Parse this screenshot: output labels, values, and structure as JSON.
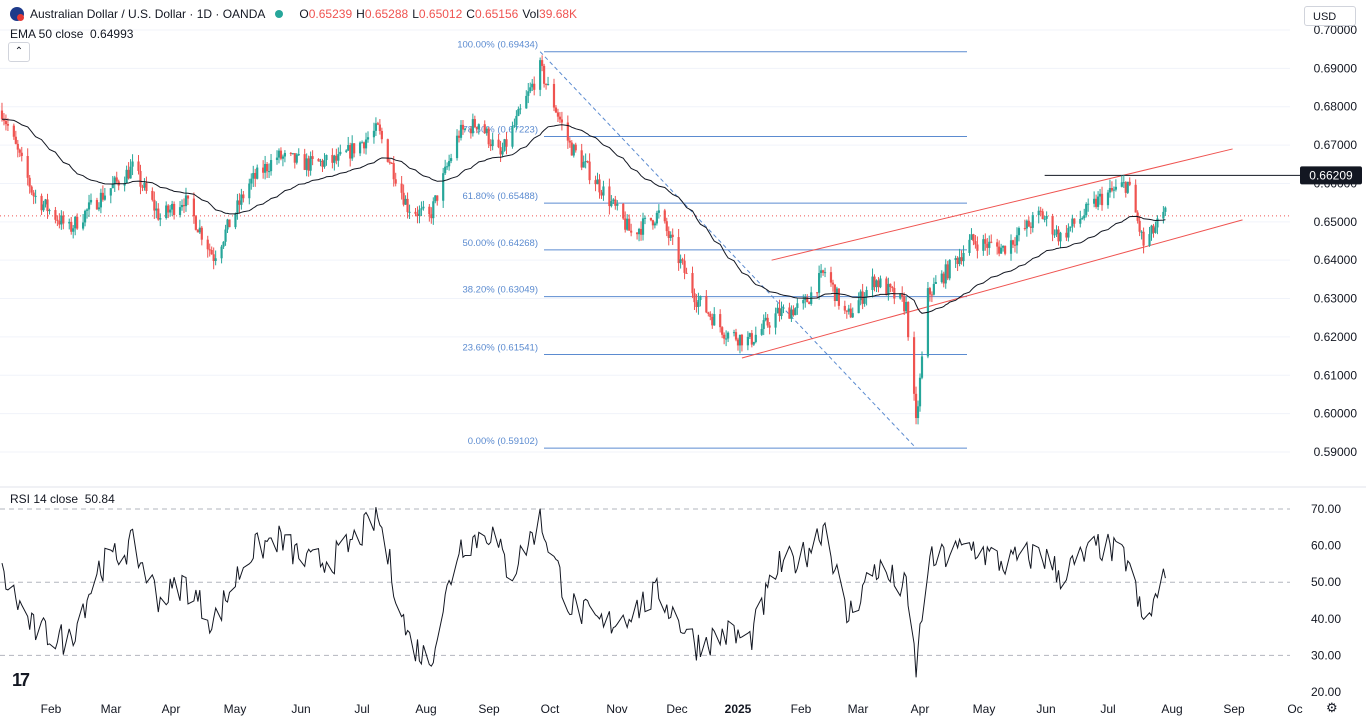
{
  "header": {
    "symbol": "Australian Dollar / U.S. Dollar · 1D · OANDA",
    "open_label": "O",
    "open": "0.65239",
    "high_label": "H",
    "high": "0.65288",
    "low_label": "L",
    "low": "0.65012",
    "close_label": "C",
    "close": "0.65156",
    "vol_label": "Vol",
    "vol": "39.68K",
    "ema_label": "EMA 50 close",
    "ema_value": "0.64993",
    "currency": "USD"
  },
  "rsi_header": {
    "label": "RSI 14 close",
    "value": "50.84"
  },
  "colors": {
    "up": "#26a69a",
    "down": "#ef5350",
    "fib": "#5b8bd0",
    "channel": "#ef5350",
    "ema": "#131722",
    "rsi": "#131722",
    "current_price_line": "#ef5350"
  },
  "chart_data": [
    {
      "type": "candlestick",
      "ylim": [
        0.585,
        0.7
      ],
      "yticks": [
        "0.70000",
        "0.69000",
        "0.68000",
        "0.67000",
        "0.66000",
        "0.65000",
        "0.64000",
        "0.63000",
        "0.62000",
        "0.61000",
        "0.60000",
        "0.59000"
      ],
      "x": [
        "Feb",
        "Mar",
        "Apr",
        "May",
        "Jun",
        "Jul",
        "Aug",
        "Sep",
        "Oct",
        "Nov",
        "Dec",
        "2025",
        "Feb",
        "Mar",
        "Apr",
        "May",
        "Jun",
        "Jul",
        "Aug",
        "Sep",
        "Oc"
      ],
      "price_path": [
        [
          "2024-01-02",
          0.679
        ],
        [
          "2024-01-18",
          0.657
        ],
        [
          "2024-02-05",
          0.648
        ],
        [
          "2024-02-20",
          0.656
        ],
        [
          "2024-03-08",
          0.664
        ],
        [
          "2024-03-22",
          0.651
        ],
        [
          "2024-04-03",
          0.656
        ],
        [
          "2024-04-18",
          0.641
        ],
        [
          "2024-05-06",
          0.66
        ],
        [
          "2024-05-20",
          0.667
        ],
        [
          "2024-06-05",
          0.665
        ],
        [
          "2024-06-20",
          0.666
        ],
        [
          "2024-07-10",
          0.674
        ],
        [
          "2024-07-25",
          0.654
        ],
        [
          "2024-08-05",
          0.651
        ],
        [
          "2024-08-20",
          0.673
        ],
        [
          "2024-08-30",
          0.676
        ],
        [
          "2024-09-10",
          0.667
        ],
        [
          "2024-09-30",
          0.69
        ],
        [
          "2024-10-15",
          0.67
        ],
        [
          "2024-11-01",
          0.658
        ],
        [
          "2024-11-15",
          0.647
        ],
        [
          "2024-11-29",
          0.652
        ],
        [
          "2024-12-18",
          0.63
        ],
        [
          "2025-01-02",
          0.621
        ],
        [
          "2025-01-14",
          0.619
        ],
        [
          "2025-01-28",
          0.626
        ],
        [
          "2025-02-10",
          0.628
        ],
        [
          "2025-02-21",
          0.637
        ],
        [
          "2025-03-04",
          0.625
        ],
        [
          "2025-03-18",
          0.635
        ],
        [
          "2025-04-03",
          0.628
        ],
        [
          "2025-04-08",
          0.597
        ],
        [
          "2025-04-14",
          0.631
        ],
        [
          "2025-05-06",
          0.645
        ],
        [
          "2025-05-22",
          0.643
        ],
        [
          "2025-06-10",
          0.652
        ],
        [
          "2025-06-20",
          0.646
        ],
        [
          "2025-07-10",
          0.656
        ],
        [
          "2025-07-24",
          0.66
        ],
        [
          "2025-08-01",
          0.644
        ],
        [
          "2025-08-12",
          0.652
        ]
      ],
      "current_price": 0.65156,
      "level_label": "0.66209",
      "level_value": 0.66209,
      "series": [
        {
          "name": "EMA 50 close"
        }
      ],
      "fib_levels": [
        {
          "label": "100.00% (0.69434)",
          "value": 0.69434
        },
        {
          "label": "78.60% (0.67223)",
          "value": 0.67223
        },
        {
          "label": "61.80% (0.65488)",
          "value": 0.65488
        },
        {
          "label": "50.00% (0.64268)",
          "value": 0.64268
        },
        {
          "label": "38.20% (0.63049)",
          "value": 0.63049
        },
        {
          "label": "23.60% (0.61541)",
          "value": 0.61541
        },
        {
          "label": "0.00% (0.59102)",
          "value": 0.59102
        }
      ],
      "fib_anchor": {
        "high_date": "2024-09-30",
        "low_date": "2025-04-08",
        "extend_to": "2025-08-12"
      },
      "channel": {
        "upper": [
          [
            "2025-01-25",
            0.64
          ],
          [
            "2025-09-15",
            0.669
          ]
        ],
        "lower": [
          [
            "2025-01-10",
            0.6145
          ],
          [
            "2025-09-20",
            0.6505
          ]
        ]
      },
      "resistance_from": "2025-06-12"
    },
    {
      "type": "line",
      "series": [
        {
          "name": "RSI 14 close"
        }
      ],
      "ylim": [
        20,
        72
      ],
      "yticks": [
        "70.00",
        "60.00",
        "50.00",
        "40.00",
        "30.00",
        "20.00"
      ],
      "guides": [
        70,
        50,
        30
      ],
      "rsi_path": [
        [
          "2024-01-02",
          52
        ],
        [
          "2024-01-18",
          37
        ],
        [
          "2024-02-05",
          34
        ],
        [
          "2024-02-20",
          54
        ],
        [
          "2024-03-08",
          60
        ],
        [
          "2024-03-22",
          45
        ],
        [
          "2024-04-03",
          50
        ],
        [
          "2024-04-18",
          39
        ],
        [
          "2024-05-06",
          58
        ],
        [
          "2024-05-20",
          62
        ],
        [
          "2024-06-05",
          55
        ],
        [
          "2024-06-20",
          57
        ],
        [
          "2024-07-10",
          68
        ],
        [
          "2024-07-25",
          35
        ],
        [
          "2024-08-05",
          28
        ],
        [
          "2024-08-20",
          60
        ],
        [
          "2024-09-05",
          64
        ],
        [
          "2024-09-15",
          52
        ],
        [
          "2024-09-30",
          67
        ],
        [
          "2024-10-15",
          44
        ],
        [
          "2024-11-01",
          38
        ],
        [
          "2024-11-15",
          42
        ],
        [
          "2024-11-29",
          47
        ],
        [
          "2024-12-18",
          33
        ],
        [
          "2025-01-02",
          36
        ],
        [
          "2025-01-14",
          34
        ],
        [
          "2025-01-28",
          54
        ],
        [
          "2025-02-10",
          57
        ],
        [
          "2025-02-21",
          66
        ],
        [
          "2025-03-04",
          40
        ],
        [
          "2025-03-18",
          54
        ],
        [
          "2025-04-03",
          48
        ],
        [
          "2025-04-08",
          26
        ],
        [
          "2025-04-14",
          55
        ],
        [
          "2025-05-06",
          60
        ],
        [
          "2025-05-22",
          55
        ],
        [
          "2025-06-10",
          58
        ],
        [
          "2025-06-20",
          52
        ],
        [
          "2025-07-10",
          60
        ],
        [
          "2025-07-24",
          56
        ],
        [
          "2025-08-01",
          38
        ],
        [
          "2025-08-12",
          51
        ]
      ],
      "current_value": 50.84
    }
  ],
  "footer": {
    "logo": "17",
    "settings_icon": "gear-icon"
  }
}
